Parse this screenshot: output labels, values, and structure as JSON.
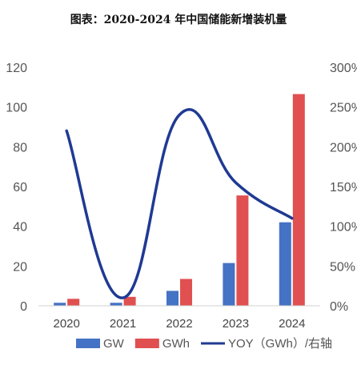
{
  "title": "图表：2020-2024 年中国储能新增装机量",
  "chart_data": {
    "type": "bar",
    "categories": [
      "2020",
      "2021",
      "2022",
      "2023",
      "2024"
    ],
    "series": [
      {
        "name": "GW",
        "type": "bar",
        "axis": "left",
        "color": "#4472C4",
        "values": [
          1.5,
          1.5,
          7.5,
          21.5,
          42
        ]
      },
      {
        "name": "GWh",
        "type": "bar",
        "axis": "left",
        "color": "#E05050",
        "values": [
          3.5,
          4.5,
          13.5,
          55.5,
          106.5
        ]
      },
      {
        "name": "YOY（GWh）/右轴",
        "type": "line",
        "axis": "right",
        "color": "#1F3A93",
        "values": [
          220,
          10,
          240,
          155,
          110
        ]
      }
    ],
    "y_left": {
      "ticks": [
        "0",
        "20",
        "40",
        "60",
        "80",
        "100",
        "120"
      ],
      "ylim": [
        0,
        120
      ]
    },
    "y_right": {
      "ticks": [
        "0%",
        "50%",
        "100%",
        "150%",
        "200%",
        "250%",
        "300%"
      ],
      "ylim": [
        0,
        300
      ]
    },
    "legend": "bottom",
    "grid": false
  }
}
